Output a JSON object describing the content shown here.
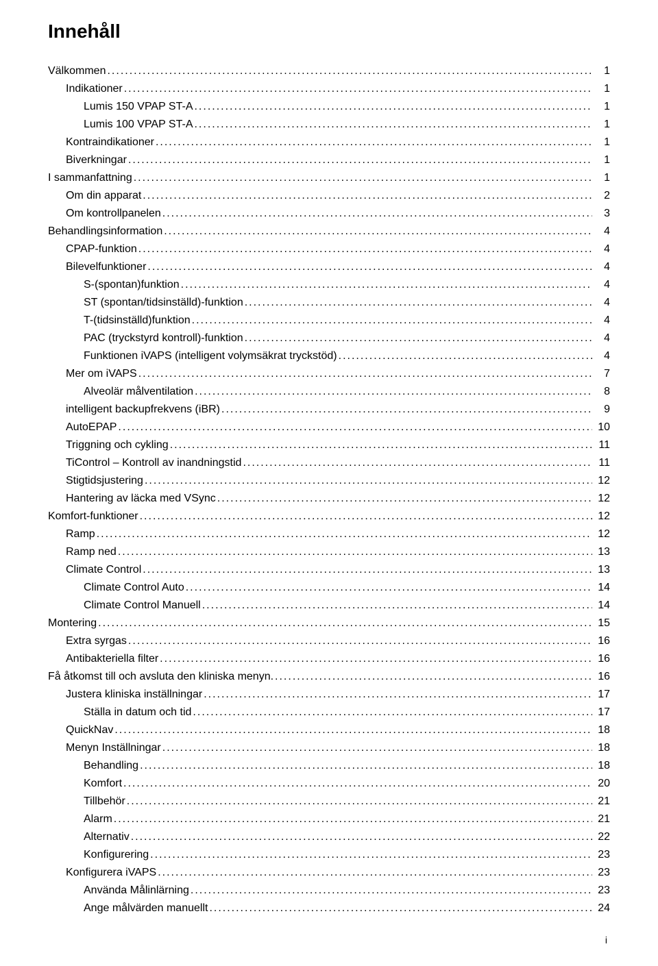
{
  "title": "Innehåll",
  "footer_page": "i",
  "entries": [
    {
      "label": "Välkommen",
      "page": "1",
      "level": 0
    },
    {
      "label": "Indikationer",
      "page": "1",
      "level": 1
    },
    {
      "label": "Lumis 150 VPAP ST-A",
      "page": "1",
      "level": 2
    },
    {
      "label": "Lumis 100 VPAP ST-A",
      "page": "1",
      "level": 2
    },
    {
      "label": "Kontraindikationer",
      "page": "1",
      "level": 1
    },
    {
      "label": "Biverkningar",
      "page": "1",
      "level": 1
    },
    {
      "label": "I sammanfattning",
      "page": "1",
      "level": 0
    },
    {
      "label": "Om din apparat",
      "page": "2",
      "level": 1
    },
    {
      "label": "Om kontrollpanelen",
      "page": "3",
      "level": 1
    },
    {
      "label": "Behandlingsinformation",
      "page": "4",
      "level": 0
    },
    {
      "label": "CPAP-funktion",
      "page": "4",
      "level": 1
    },
    {
      "label": "Bilevelfunktioner",
      "page": "4",
      "level": 1
    },
    {
      "label": "S-(spontan)funktion",
      "page": "4",
      "level": 2
    },
    {
      "label": "ST (spontan/tidsinställd)-funktion",
      "page": "4",
      "level": 2
    },
    {
      "label": "T-(tidsinställd)funktion",
      "page": "4",
      "level": 2
    },
    {
      "label": "PAC (tryckstyrd kontroll)-funktion",
      "page": "4",
      "level": 2
    },
    {
      "label": "Funktionen iVAPS (intelligent volymsäkrat tryckstöd)",
      "page": "4",
      "level": 2
    },
    {
      "label": "Mer om iVAPS",
      "page": "7",
      "level": 1
    },
    {
      "label": "Alveolär målventilation",
      "page": "8",
      "level": 2
    },
    {
      "label": "intelligent backupfrekvens (iBR)",
      "page": "9",
      "level": 1
    },
    {
      "label": "AutoEPAP",
      "page": "10",
      "level": 1
    },
    {
      "label": "Triggning och cykling",
      "page": "11",
      "level": 1
    },
    {
      "label": "TiControl – Kontroll av inandningstid",
      "page": "11",
      "level": 1
    },
    {
      "label": "Stigtidsjustering",
      "page": "12",
      "level": 1
    },
    {
      "label": "Hantering av läcka med VSync",
      "page": "12",
      "level": 1
    },
    {
      "label": "Komfort-funktioner",
      "page": "12",
      "level": 0
    },
    {
      "label": "Ramp",
      "page": "12",
      "level": 1
    },
    {
      "label": "Ramp ned",
      "page": "13",
      "level": 1
    },
    {
      "label": "Climate Control",
      "page": "13",
      "level": 1
    },
    {
      "label": "Climate Control Auto",
      "page": "14",
      "level": 2
    },
    {
      "label": "Climate Control Manuell",
      "page": "14",
      "level": 2
    },
    {
      "label": "Montering",
      "page": "15",
      "level": 0
    },
    {
      "label": "Extra syrgas",
      "page": "16",
      "level": 1
    },
    {
      "label": "Antibakteriella filter",
      "page": "16",
      "level": 1
    },
    {
      "label": "Få åtkomst till och avsluta den kliniska menyn.",
      "page": "16",
      "level": 0
    },
    {
      "label": "Justera kliniska inställningar",
      "page": "17",
      "level": 1
    },
    {
      "label": "Ställa in datum och tid",
      "page": "17",
      "level": 2
    },
    {
      "label": "QuickNav",
      "page": "18",
      "level": 1
    },
    {
      "label": "Menyn Inställningar",
      "page": "18",
      "level": 1
    },
    {
      "label": "Behandling",
      "page": "18",
      "level": 2
    },
    {
      "label": "Komfort",
      "page": "20",
      "level": 2
    },
    {
      "label": "Tillbehör",
      "page": "21",
      "level": 2
    },
    {
      "label": "Alarm",
      "page": "21",
      "level": 2
    },
    {
      "label": "Alternativ",
      "page": "22",
      "level": 2
    },
    {
      "label": "Konfigurering",
      "page": "23",
      "level": 2
    },
    {
      "label": "Konfigurera iVAPS",
      "page": "23",
      "level": 1
    },
    {
      "label": "Använda Målinlärning",
      "page": "23",
      "level": 2
    },
    {
      "label": "Ange målvärden manuellt",
      "page": "24",
      "level": 2
    }
  ]
}
